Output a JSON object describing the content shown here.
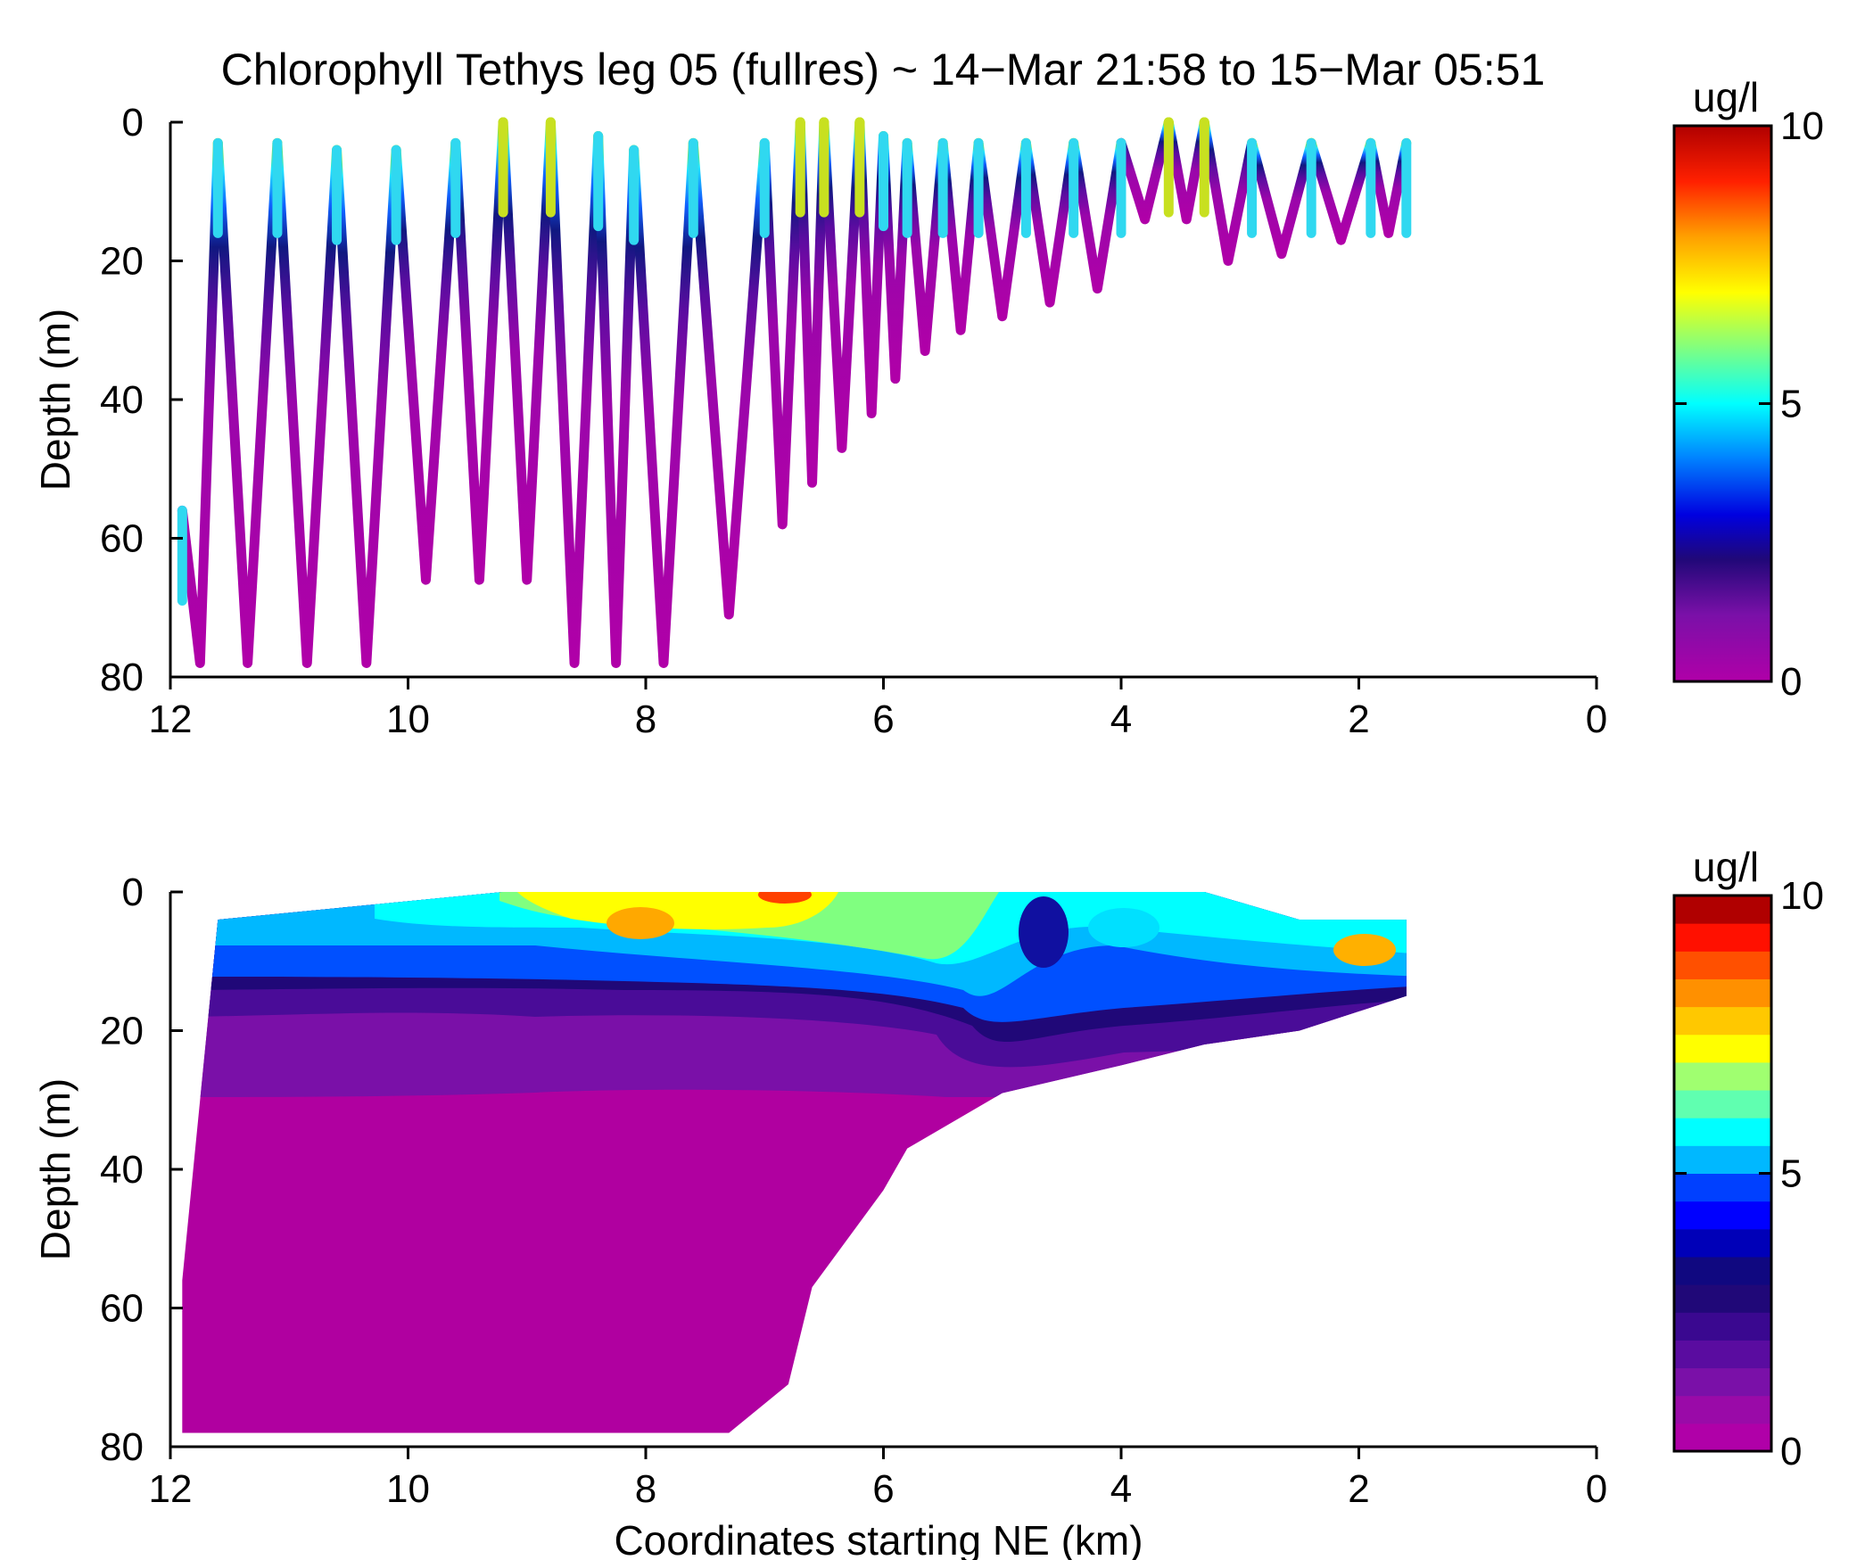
{
  "title": "Chlorophyll Tethys leg 05 (fullres) ~ 14−Mar 21:58 to 15−Mar 05:51",
  "chart_data": [
    {
      "type": "scatter",
      "name": "top-panel",
      "title": "Chlorophyll Tethys leg 05 (fullres) ~ 14−Mar 21:58 to 15−Mar 05:51",
      "xlabel": "",
      "ylabel": "Depth (m)",
      "xlim": [
        12,
        0
      ],
      "ylim": [
        0,
        80
      ],
      "x_reversed": true,
      "y_reversed": true,
      "xticks": [
        "12",
        "10",
        "8",
        "6",
        "4",
        "2",
        "0"
      ],
      "yticks": [
        "0",
        "20",
        "40",
        "60",
        "80"
      ],
      "colorbar": {
        "label": "ug/l",
        "min": 0,
        "max": 10,
        "ticks": [
          "0",
          "5",
          "10"
        ],
        "continuous": true
      },
      "profiles": [
        {
          "x": 11.9,
          "top": 56,
          "bottom": 78
        },
        {
          "x": 11.6,
          "top": 3,
          "bottom": 78
        },
        {
          "x": 11.1,
          "top": 3,
          "bottom": 78
        },
        {
          "x": 10.6,
          "top": 4,
          "bottom": 78
        },
        {
          "x": 10.1,
          "top": 4,
          "bottom": 78
        },
        {
          "x": 9.6,
          "top": 3,
          "bottom": 66
        },
        {
          "x": 9.2,
          "top": 0,
          "bottom": 66
        },
        {
          "x": 8.8,
          "top": 0,
          "bottom": 78
        },
        {
          "x": 8.4,
          "top": 2,
          "bottom": 78
        },
        {
          "x": 8.1,
          "top": 4,
          "bottom": 78
        },
        {
          "x": 7.6,
          "top": 3,
          "bottom": 78
        },
        {
          "x": 7.0,
          "top": 3,
          "bottom": 71
        },
        {
          "x": 6.7,
          "top": 0,
          "bottom": 58
        },
        {
          "x": 6.5,
          "top": 0,
          "bottom": 52
        },
        {
          "x": 6.2,
          "top": 0,
          "bottom": 47
        },
        {
          "x": 6.0,
          "top": 2,
          "bottom": 42
        },
        {
          "x": 5.8,
          "top": 3,
          "bottom": 37
        },
        {
          "x": 5.5,
          "top": 3,
          "bottom": 33
        },
        {
          "x": 5.2,
          "top": 3,
          "bottom": 30
        },
        {
          "x": 4.8,
          "top": 3,
          "bottom": 28
        },
        {
          "x": 4.4,
          "top": 3,
          "bottom": 26
        },
        {
          "x": 4.0,
          "top": 3,
          "bottom": 24
        },
        {
          "x": 3.6,
          "top": 0,
          "bottom": 14
        },
        {
          "x": 3.3,
          "top": 0,
          "bottom": 22
        },
        {
          "x": 2.9,
          "top": 3,
          "bottom": 20
        },
        {
          "x": 2.4,
          "top": 3,
          "bottom": 19
        },
        {
          "x": 1.9,
          "top": 3,
          "bottom": 17
        },
        {
          "x": 1.6,
          "top": 3,
          "bottom": 16
        }
      ]
    },
    {
      "type": "heatmap",
      "name": "bottom-panel",
      "xlabel": "Coordinates starting NE (km)",
      "ylabel": "Depth (m)",
      "xlim": [
        12,
        0
      ],
      "ylim": [
        0,
        80
      ],
      "x_reversed": true,
      "y_reversed": true,
      "xticks": [
        "12",
        "10",
        "8",
        "6",
        "4",
        "2",
        "0"
      ],
      "yticks": [
        "0",
        "20",
        "40",
        "60",
        "80"
      ],
      "colorbar": {
        "label": "ug/l",
        "min": 0,
        "max": 10,
        "ticks": [
          "0",
          "5",
          "10"
        ],
        "levels": 20
      },
      "coverage": [
        {
          "x": 11.9,
          "top": 56,
          "bottom": 78
        },
        {
          "x": 11.6,
          "top": 4,
          "bottom": 78
        },
        {
          "x": 9.2,
          "top": 0,
          "bottom": 78
        },
        {
          "x": 7.3,
          "top": 0,
          "bottom": 78
        },
        {
          "x": 6.8,
          "top": 0,
          "bottom": 71
        },
        {
          "x": 6.6,
          "top": 0,
          "bottom": 57
        },
        {
          "x": 6.0,
          "top": 0,
          "bottom": 43
        },
        {
          "x": 5.8,
          "top": 0,
          "bottom": 37
        },
        {
          "x": 5.0,
          "top": 0,
          "bottom": 29
        },
        {
          "x": 4.0,
          "top": 0,
          "bottom": 25
        },
        {
          "x": 3.3,
          "top": 0,
          "bottom": 22
        },
        {
          "x": 2.5,
          "top": 4,
          "bottom": 20
        },
        {
          "x": 1.6,
          "top": 4,
          "bottom": 15
        }
      ]
    }
  ]
}
